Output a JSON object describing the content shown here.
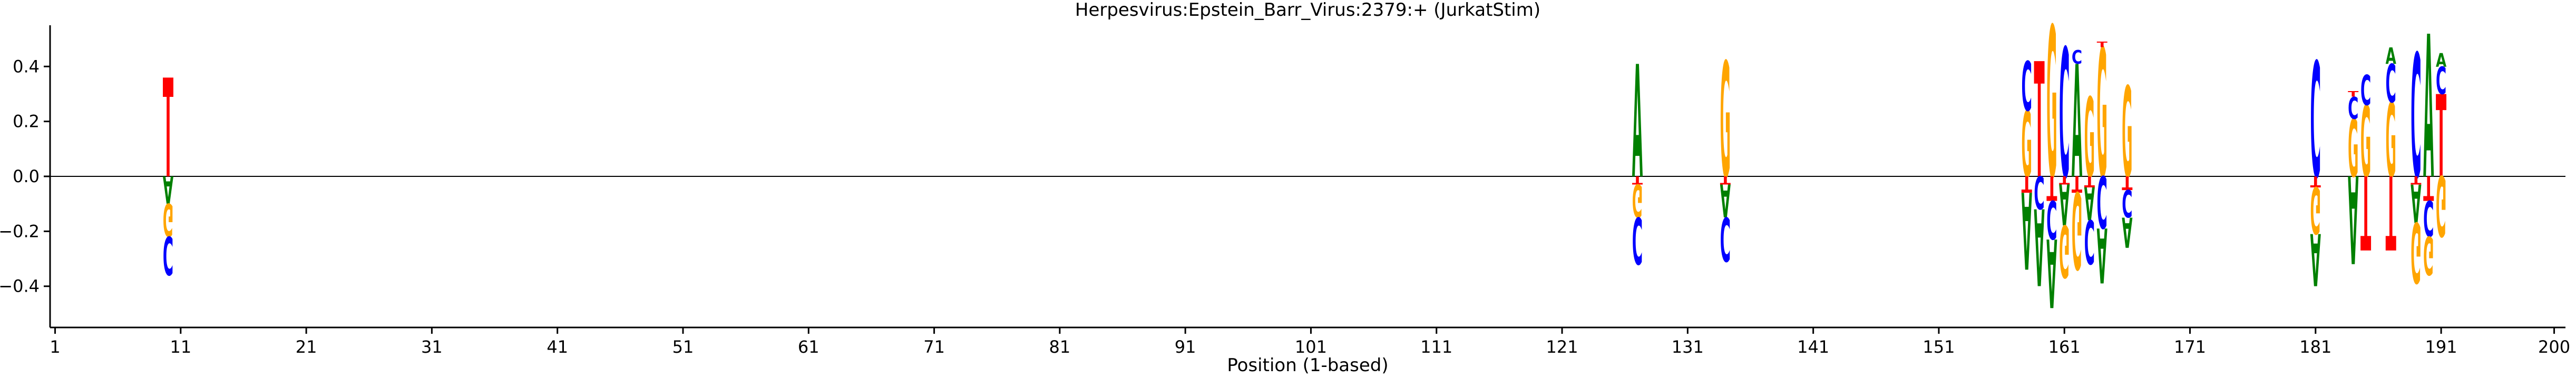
{
  "chart_data": {
    "type": "sequence-logo",
    "title": "Herpesvirus:Epstein_Barr_Virus:2379:+  (JurkatStim)",
    "xlabel": "Position (1-based)",
    "ylabel": "",
    "xlim": [
      1,
      200
    ],
    "ylim": [
      -0.55,
      0.55
    ],
    "x_ticks": [
      1,
      11,
      21,
      31,
      41,
      51,
      61,
      71,
      81,
      91,
      101,
      111,
      121,
      131,
      141,
      151,
      161,
      171,
      181,
      191,
      200
    ],
    "y_ticks": [
      -0.4,
      -0.2,
      0.0,
      0.2,
      0.4
    ],
    "y_tick_labels": [
      "−0.4",
      "−0.2",
      "0.0",
      "0.2",
      "0.4"
    ],
    "colors": {
      "A": "#008000",
      "C": "#0000ff",
      "G": "#ffa500",
      "T": "#ff0000"
    },
    "positions": [
      {
        "x": 10,
        "stack": [
          {
            "base": "T",
            "value": 0.36
          },
          {
            "base": "G",
            "value": -0.12
          },
          {
            "base": "C",
            "value": -0.14
          },
          {
            "base": "A",
            "value": -0.1
          }
        ]
      },
      {
        "x": 127,
        "stack": [
          {
            "base": "A",
            "value": 0.41
          },
          {
            "base": "T",
            "value": -0.03
          },
          {
            "base": "G",
            "value": -0.12
          },
          {
            "base": "C",
            "value": -0.17
          }
        ]
      },
      {
        "x": 134,
        "stack": [
          {
            "base": "G",
            "value": 0.42
          },
          {
            "base": "T",
            "value": -0.03
          },
          {
            "base": "C",
            "value": -0.16
          },
          {
            "base": "A",
            "value": -0.12
          }
        ]
      },
      {
        "x": 158,
        "stack": [
          {
            "base": "G",
            "value": 0.24
          },
          {
            "base": "C",
            "value": 0.18
          },
          {
            "base": "T",
            "value": -0.06
          },
          {
            "base": "A",
            "value": -0.28
          }
        ]
      },
      {
        "x": 159,
        "stack": [
          {
            "base": "T",
            "value": 0.42
          },
          {
            "base": "C",
            "value": -0.12
          },
          {
            "base": "A",
            "value": -0.28
          }
        ]
      },
      {
        "x": 160,
        "stack": [
          {
            "base": "G",
            "value": 0.55
          },
          {
            "base": "T",
            "value": -0.09
          },
          {
            "base": "C",
            "value": -0.14
          },
          {
            "base": "A",
            "value": -0.25
          }
        ]
      },
      {
        "x": 161,
        "stack": [
          {
            "base": "C",
            "value": 0.47
          },
          {
            "base": "T",
            "value": -0.03
          },
          {
            "base": "G",
            "value": -0.19
          },
          {
            "base": "A",
            "value": -0.15
          }
        ]
      },
      {
        "x": 162,
        "stack": [
          {
            "base": "A",
            "value": 0.41
          },
          {
            "base": "C",
            "value": 0.05
          },
          {
            "base": "T",
            "value": -0.06
          },
          {
            "base": "G",
            "value": -0.28
          }
        ]
      },
      {
        "x": 163,
        "stack": [
          {
            "base": "G",
            "value": 0.29
          },
          {
            "base": "T",
            "value": -0.04
          },
          {
            "base": "C",
            "value": -0.16
          },
          {
            "base": "A",
            "value": -0.12
          }
        ]
      },
      {
        "x": 164,
        "stack": [
          {
            "base": "G",
            "value": 0.47
          },
          {
            "base": "T",
            "value": 0.02
          },
          {
            "base": "C",
            "value": -0.19
          },
          {
            "base": "A",
            "value": -0.2
          }
        ]
      },
      {
        "x": 166,
        "stack": [
          {
            "base": "G",
            "value": 0.33
          },
          {
            "base": "T",
            "value": -0.05
          },
          {
            "base": "C",
            "value": -0.1
          },
          {
            "base": "A",
            "value": -0.11
          }
        ]
      },
      {
        "x": 181,
        "stack": [
          {
            "base": "C",
            "value": 0.42
          },
          {
            "base": "T",
            "value": -0.04
          },
          {
            "base": "G",
            "value": -0.17
          },
          {
            "base": "A",
            "value": -0.19
          }
        ]
      },
      {
        "x": 184,
        "stack": [
          {
            "base": "T",
            "value": 0.02
          },
          {
            "base": "G",
            "value": 0.21
          },
          {
            "base": "C",
            "value": 0.08
          },
          {
            "base": "A",
            "value": -0.32
          }
        ]
      },
      {
        "x": 185,
        "stack": [
          {
            "base": "G",
            "value": 0.26
          },
          {
            "base": "C",
            "value": 0.11
          },
          {
            "base": "T",
            "value": -0.27
          }
        ]
      },
      {
        "x": 187,
        "stack": [
          {
            "base": "G",
            "value": 0.27
          },
          {
            "base": "A",
            "value": 0.06
          },
          {
            "base": "C",
            "value": 0.14
          },
          {
            "base": "T",
            "value": -0.27
          }
        ]
      },
      {
        "x": 189,
        "stack": [
          {
            "base": "C",
            "value": 0.45
          },
          {
            "base": "T",
            "value": -0.03
          },
          {
            "base": "G",
            "value": -0.22
          },
          {
            "base": "A",
            "value": -0.14
          }
        ]
      },
      {
        "x": 190,
        "stack": [
          {
            "base": "A",
            "value": 0.52
          },
          {
            "base": "T",
            "value": -0.09
          },
          {
            "base": "G",
            "value": -0.14
          },
          {
            "base": "C",
            "value": -0.13
          }
        ]
      },
      {
        "x": 191,
        "stack": [
          {
            "base": "T",
            "value": 0.3
          },
          {
            "base": "C",
            "value": 0.1
          },
          {
            "base": "A",
            "value": 0.05
          },
          {
            "base": "G",
            "value": -0.22
          }
        ]
      }
    ]
  }
}
